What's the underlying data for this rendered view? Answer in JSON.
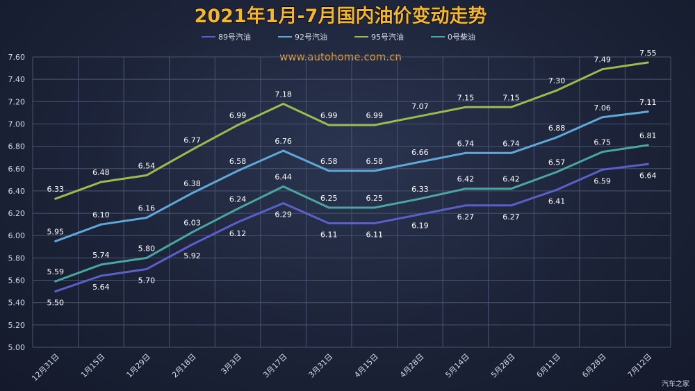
{
  "watermark": "汽车之家",
  "chart_data": {
    "type": "line",
    "title": "2021年1月-7月国内油价变动走势",
    "subtitle": "www.autohome.com.cn",
    "xlabel": "",
    "ylabel": "",
    "categories": [
      "12月31日",
      "1月15日",
      "1月29日",
      "2月18日",
      "3月3日",
      "3月17日",
      "3月31日",
      "4月15日",
      "4月28日",
      "5月14日",
      "5月28日",
      "6月11日",
      "6月28日",
      "7月12日"
    ],
    "yticks": [
      "5.00",
      "5.20",
      "5.40",
      "5.60",
      "5.80",
      "6.00",
      "6.20",
      "6.40",
      "6.60",
      "6.80",
      "7.00",
      "7.20",
      "7.40",
      "7.60"
    ],
    "ylim": [
      5.0,
      7.6
    ],
    "grid": true,
    "legend_position": "top",
    "series": [
      {
        "name": "89号汽油",
        "color": "#5b5fc7",
        "label_position": "below",
        "values": [
          5.5,
          5.64,
          5.7,
          5.92,
          6.12,
          6.29,
          6.11,
          6.11,
          6.19,
          6.27,
          6.27,
          6.41,
          6.59,
          6.64
        ],
        "labels": [
          "5.50",
          "5.64",
          "5.70",
          "5.92",
          "6.12",
          "6.29",
          "6.11",
          "6.11",
          "6.19",
          "6.27",
          "6.27",
          "6.41",
          "6.59",
          "6.64"
        ]
      },
      {
        "name": "92号汽油",
        "color": "#5fa9d8",
        "label_position": "above",
        "values": [
          5.95,
          6.1,
          6.16,
          6.38,
          6.58,
          6.76,
          6.58,
          6.58,
          6.66,
          6.74,
          6.74,
          6.88,
          7.06,
          7.11
        ],
        "labels": [
          "5.95",
          "6.10",
          "6.16",
          "6.38",
          "6.58",
          "6.76",
          "6.58",
          "6.58",
          "6.66",
          "6.74",
          "6.74",
          "6.88",
          "7.06",
          "7.11"
        ]
      },
      {
        "name": "95号汽油",
        "color": "#9cbb4e",
        "label_position": "above",
        "values": [
          6.33,
          6.48,
          6.54,
          6.77,
          6.99,
          7.18,
          6.99,
          6.99,
          7.07,
          7.15,
          7.15,
          7.3,
          7.49,
          7.55
        ],
        "labels": [
          "6.33",
          "6.48",
          "6.54",
          "6.77",
          "6.99",
          "7.18",
          "6.99",
          "6.99",
          "7.07",
          "7.15",
          "7.15",
          "7.30",
          "7.49",
          "7.55"
        ]
      },
      {
        "name": "0号柴油",
        "color": "#4aa6a0",
        "label_position": "above",
        "values": [
          5.59,
          5.74,
          5.8,
          6.03,
          6.24,
          6.44,
          6.25,
          6.25,
          6.33,
          6.42,
          6.42,
          6.57,
          6.75,
          6.81
        ],
        "labels": [
          "5.59",
          "5.74",
          "5.80",
          "6.03",
          "6.24",
          "6.44",
          "6.25",
          "6.25",
          "6.33",
          "6.42",
          "6.42",
          "6.57",
          "6.75",
          "6.81"
        ]
      }
    ],
    "colors": {
      "title": "#f2b632",
      "title_shadow": "#000000",
      "subtitle": "#e8a23a",
      "grid": "#4a5470",
      "axis_text": "#d7dbe6",
      "data_label": "#ffffff"
    }
  }
}
